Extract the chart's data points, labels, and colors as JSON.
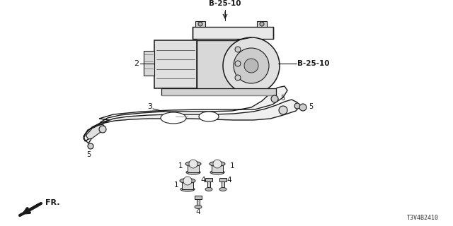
{
  "background_color": "#ffffff",
  "line_color": "#1a1a1a",
  "label_color": "#000000",
  "labels": {
    "B25_10_top": "B-25-10",
    "B25_10_right": "B-25-10",
    "part1": "1",
    "part2": "2",
    "part3": "3",
    "part4": "4",
    "part5": "5",
    "fr": "FR.",
    "part_num": "T3V4B2410"
  },
  "figsize": [
    6.4,
    3.2
  ],
  "dpi": 100
}
